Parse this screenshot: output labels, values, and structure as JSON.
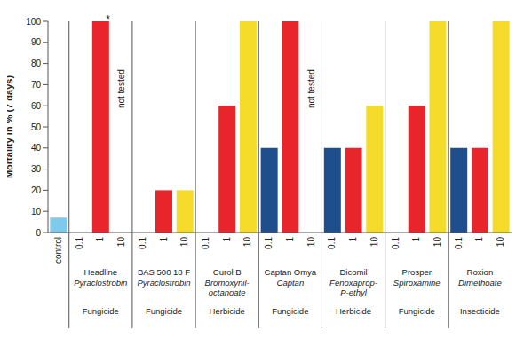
{
  "chart_data": {
    "type": "bar",
    "y_label": "Mortality in % (7 days)",
    "categories": [
      "control",
      "0.1",
      "1",
      "10",
      "0.1",
      "1",
      "10",
      "0.1",
      "1",
      "10",
      "0.1",
      "1",
      "10",
      "0.1",
      "1",
      "10",
      "0.1",
      "1",
      "10",
      "0.1",
      "1",
      "10"
    ],
    "values": [
      7,
      0,
      100,
      null,
      0,
      20,
      20,
      0,
      60,
      100,
      40,
      100,
      null,
      40,
      40,
      60,
      0,
      60,
      100,
      40,
      40,
      100
    ],
    "colors": [
      "#7fc9ea",
      "#1f4e8c",
      "#e8252a",
      "#f5dc2b",
      "#1f4e8c",
      "#e8252a",
      "#f5dc2b",
      "#1f4e8c",
      "#e8252a",
      "#f5dc2b",
      "#1f4e8c",
      "#e8252a",
      "#f5dc2b",
      "#1f4e8c",
      "#e8252a",
      "#f5dc2b",
      "#1f4e8c",
      "#e8252a",
      "#f5dc2b",
      "#1f4e8c",
      "#e8252a",
      "#f5dc2b"
    ],
    "groups": [
      {
        "name": "Headline",
        "ingredient": "Pyraclostrobin",
        "class": "Fungicide"
      },
      {
        "name": "BAS 500 18 F",
        "ingredient": "Pyraclostrobin",
        "class": "Fungicide"
      },
      {
        "name": "Curol B",
        "ingredient": "Bromoxynil-octanoate",
        "class": "Herbicide"
      },
      {
        "name": "Captan Omya",
        "ingredient": "Captan",
        "class": "Fungicide"
      },
      {
        "name": "Dicomil",
        "ingredient": "Fenoxaprop-P-ethyl",
        "class": "Herbicide"
      },
      {
        "name": "Prosper",
        "ingredient": "Spiroxamine",
        "class": "Fungicide"
      },
      {
        "name": "Roxion",
        "ingredient": "Dimethoate",
        "class": "Insecticide"
      }
    ],
    "annotations": [
      {
        "index": 2,
        "text": "*"
      },
      {
        "index": 3,
        "text": "not tested"
      },
      {
        "index": 12,
        "text": "not tested"
      }
    ],
    "ylim": [
      0,
      100
    ],
    "yticks": [
      0,
      10,
      20,
      30,
      40,
      50,
      60,
      70,
      80,
      90,
      100
    ],
    "grid": false
  }
}
